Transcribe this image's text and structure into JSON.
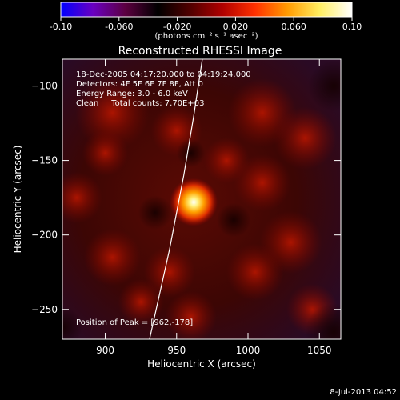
{
  "colorbar": {
    "ticks": [
      "-0.10",
      "-0.060",
      "-0.020",
      "0.020",
      "0.060",
      "0.10"
    ],
    "values": [
      -0.1,
      -0.06,
      -0.02,
      0.02,
      0.06,
      0.1
    ],
    "range": [
      -0.1,
      0.1
    ],
    "unit_label": "(photons cm⁻² s⁻¹ asec⁻²)",
    "stops": [
      "#0000ff",
      "#6a00c0",
      "#5c0040",
      "#000000",
      "#500000",
      "#b00000",
      "#ff3000",
      "#ff9a00",
      "#ffee60",
      "#ffffff"
    ]
  },
  "chart_data": {
    "type": "heatmap",
    "title": "Reconstructed RHESSI Image",
    "xlabel": "Heliocentric X (arcsec)",
    "ylabel": "Heliocentric Y (arcsec)",
    "xlim": [
      870,
      1065
    ],
    "ylim": [
      -270,
      -82
    ],
    "xticks": [
      900,
      950,
      1000,
      1050
    ],
    "yticks": [
      -100,
      -150,
      -200,
      -250
    ],
    "xtick_labels": [
      "900",
      "950",
      "1000",
      "1050"
    ],
    "ytick_labels": [
      "−100",
      "−150",
      "−200",
      "−250"
    ],
    "info_lines": [
      "18-Dec-2005 04:17:20.000 to 04:19:24.000",
      "Detectors: 4F 5F 6F 7F 8F, Att 0",
      "Energy Range: 3.0 - 6.0 keV",
      "Clean     Total counts: 7.70E+03"
    ],
    "peak_label": "Position of Peak = [962,-178]",
    "peak": [
      962,
      -178
    ],
    "limb": {
      "x": [
        931,
        945,
        955,
        962,
        968
      ],
      "y": [
        -270,
        -210,
        -160,
        -120,
        -82
      ]
    },
    "timestamp": "8-Jul-2013 04:52"
  }
}
